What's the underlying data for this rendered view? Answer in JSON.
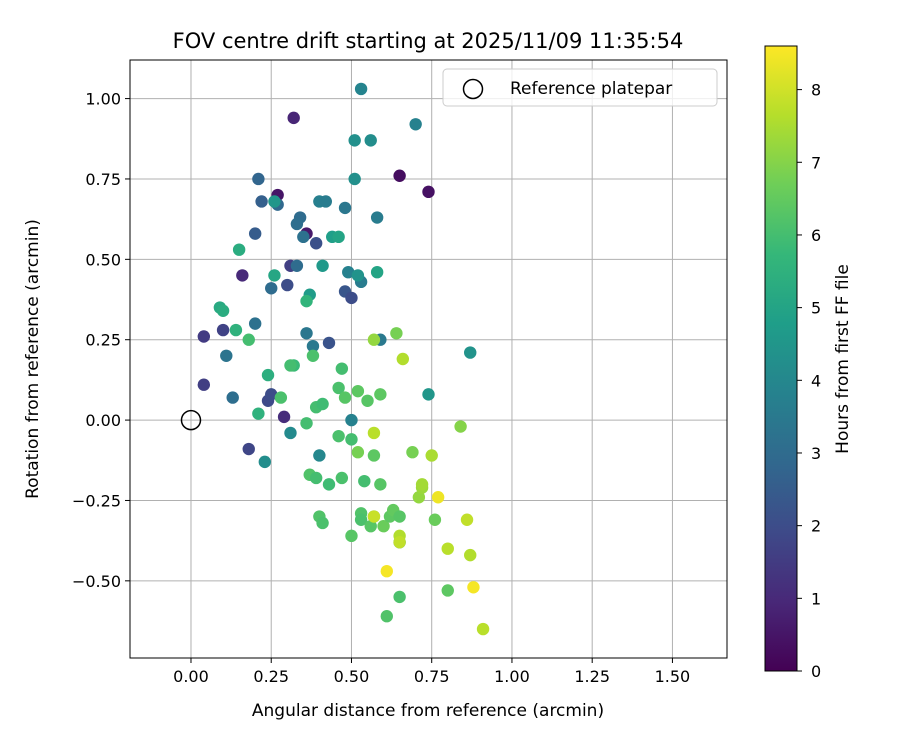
{
  "chart_data": {
    "type": "scatter",
    "title": "FOV centre drift starting at 2025/11/09 11:35:54",
    "xlabel": "Angular distance from reference (arcmin)",
    "ylabel": "Rotation from reference (arcmin)",
    "xlim": [
      -0.19,
      1.67
    ],
    "ylim": [
      -0.74,
      1.12
    ],
    "xticks": [
      0.0,
      0.25,
      0.5,
      0.75,
      1.0,
      1.25,
      1.5
    ],
    "xtick_labels": [
      "0.00",
      "0.25",
      "0.50",
      "0.75",
      "1.00",
      "1.25",
      "1.50"
    ],
    "yticks": [
      1.0,
      0.75,
      0.5,
      0.25,
      0.0,
      -0.25,
      -0.5
    ],
    "ytick_labels": [
      "1.00",
      "0.75",
      "0.50",
      "0.25",
      "0.00",
      "−0.25",
      "−0.50"
    ],
    "grid": true,
    "legend": {
      "position": "upper right",
      "entries": [
        "Reference platepar"
      ]
    },
    "reference_point": {
      "x": 0.0,
      "y": 0.0,
      "label": "Reference platepar"
    },
    "colorbar": {
      "label": "Hours from first FF file",
      "range": [
        0,
        8.6
      ],
      "ticks": [
        0,
        1,
        2,
        3,
        4,
        5,
        6,
        7,
        8
      ],
      "colormap": [
        "#440154",
        "#482878",
        "#3e4a89",
        "#31688e",
        "#26828e",
        "#1f9e89",
        "#35b779",
        "#6ece58",
        "#b5de2b",
        "#fde725"
      ]
    },
    "points": [
      {
        "x": 0.32,
        "y": 0.94,
        "h": 0.9
      },
      {
        "x": 0.27,
        "y": 0.7,
        "h": 0.5
      },
      {
        "x": 0.65,
        "y": 0.76,
        "h": 0.3
      },
      {
        "x": 0.74,
        "y": 0.71,
        "h": 0.4
      },
      {
        "x": 0.36,
        "y": 0.58,
        "h": 0.6
      },
      {
        "x": 0.16,
        "y": 0.45,
        "h": 1.0
      },
      {
        "x": 0.29,
        "y": 0.01,
        "h": 1.1
      },
      {
        "x": 0.04,
        "y": 0.26,
        "h": 1.5
      },
      {
        "x": 0.04,
        "y": 0.11,
        "h": 1.6
      },
      {
        "x": 0.1,
        "y": 0.28,
        "h": 1.7
      },
      {
        "x": 0.18,
        "y": -0.09,
        "h": 1.8
      },
      {
        "x": 0.24,
        "y": 0.06,
        "h": 1.9
      },
      {
        "x": 0.25,
        "y": 0.08,
        "h": 2.0
      },
      {
        "x": 0.31,
        "y": 0.48,
        "h": 1.6
      },
      {
        "x": 0.3,
        "y": 0.42,
        "h": 2.0
      },
      {
        "x": 0.39,
        "y": 0.55,
        "h": 2.1
      },
      {
        "x": 0.43,
        "y": 0.24,
        "h": 2.2
      },
      {
        "x": 0.48,
        "y": 0.4,
        "h": 2.3
      },
      {
        "x": 0.5,
        "y": 0.38,
        "h": 2.0
      },
      {
        "x": 0.2,
        "y": 0.58,
        "h": 2.5
      },
      {
        "x": 0.22,
        "y": 0.68,
        "h": 2.6
      },
      {
        "x": 0.21,
        "y": 0.75,
        "h": 2.8
      },
      {
        "x": 0.27,
        "y": 0.67,
        "h": 2.9
      },
      {
        "x": 0.34,
        "y": 0.63,
        "h": 3.0
      },
      {
        "x": 0.33,
        "y": 0.61,
        "h": 3.1
      },
      {
        "x": 0.35,
        "y": 0.57,
        "h": 3.2
      },
      {
        "x": 0.33,
        "y": 0.48,
        "h": 3.0
      },
      {
        "x": 0.11,
        "y": 0.2,
        "h": 3.3
      },
      {
        "x": 0.13,
        "y": 0.07,
        "h": 3.1
      },
      {
        "x": 0.2,
        "y": 0.3,
        "h": 3.2
      },
      {
        "x": 0.25,
        "y": 0.41,
        "h": 3.0
      },
      {
        "x": 0.36,
        "y": 0.27,
        "h": 3.4
      },
      {
        "x": 0.38,
        "y": 0.23,
        "h": 3.5
      },
      {
        "x": 0.48,
        "y": 0.66,
        "h": 3.4
      },
      {
        "x": 0.53,
        "y": 0.43,
        "h": 3.6
      },
      {
        "x": 0.49,
        "y": 0.46,
        "h": 3.8
      },
      {
        "x": 0.4,
        "y": 0.68,
        "h": 3.7
      },
      {
        "x": 0.42,
        "y": 0.68,
        "h": 3.6
      },
      {
        "x": 0.53,
        "y": 1.03,
        "h": 3.9
      },
      {
        "x": 0.7,
        "y": 0.92,
        "h": 3.8
      },
      {
        "x": 0.58,
        "y": 0.63,
        "h": 3.6
      },
      {
        "x": 0.59,
        "y": 0.25,
        "h": 3.5
      },
      {
        "x": 0.5,
        "y": 0.0,
        "h": 3.8
      },
      {
        "x": 0.4,
        "y": -0.11,
        "h": 4.0
      },
      {
        "x": 0.31,
        "y": -0.04,
        "h": 4.1
      },
      {
        "x": 0.23,
        "y": -0.13,
        "h": 4.2
      },
      {
        "x": 0.65,
        "y": -0.38,
        "h": 4.4
      },
      {
        "x": 0.74,
        "y": 0.08,
        "h": 4.5
      },
      {
        "x": 0.87,
        "y": 0.21,
        "h": 4.4
      },
      {
        "x": 0.51,
        "y": 0.87,
        "h": 4.3
      },
      {
        "x": 0.56,
        "y": 0.87,
        "h": 4.2
      },
      {
        "x": 0.51,
        "y": 0.75,
        "h": 4.3
      },
      {
        "x": 0.26,
        "y": 0.68,
        "h": 4.5
      },
      {
        "x": 0.41,
        "y": 0.48,
        "h": 4.6
      },
      {
        "x": 0.52,
        "y": 0.45,
        "h": 4.4
      },
      {
        "x": 0.37,
        "y": 0.39,
        "h": 4.7
      },
      {
        "x": 0.44,
        "y": 0.57,
        "h": 4.8
      },
      {
        "x": 0.46,
        "y": 0.57,
        "h": 5.0
      },
      {
        "x": 0.58,
        "y": 0.46,
        "h": 5.0
      },
      {
        "x": 0.26,
        "y": 0.45,
        "h": 5.1
      },
      {
        "x": 0.15,
        "y": 0.53,
        "h": 5.3
      },
      {
        "x": 0.09,
        "y": 0.35,
        "h": 5.2
      },
      {
        "x": 0.1,
        "y": 0.34,
        "h": 5.3
      },
      {
        "x": 0.14,
        "y": 0.28,
        "h": 5.5
      },
      {
        "x": 0.24,
        "y": 0.14,
        "h": 5.4
      },
      {
        "x": 0.21,
        "y": 0.02,
        "h": 5.5
      },
      {
        "x": 0.36,
        "y": 0.37,
        "h": 5.6
      },
      {
        "x": 0.32,
        "y": 0.17,
        "h": 5.8
      },
      {
        "x": 0.18,
        "y": 0.25,
        "h": 6.0
      },
      {
        "x": 0.28,
        "y": 0.07,
        "h": 6.1
      },
      {
        "x": 0.31,
        "y": 0.17,
        "h": 6.0
      },
      {
        "x": 0.38,
        "y": 0.2,
        "h": 6.1
      },
      {
        "x": 0.39,
        "y": 0.04,
        "h": 6.0
      },
      {
        "x": 0.41,
        "y": 0.05,
        "h": 5.9
      },
      {
        "x": 0.36,
        "y": -0.01,
        "h": 6.0
      },
      {
        "x": 0.37,
        "y": -0.17,
        "h": 6.2
      },
      {
        "x": 0.39,
        "y": -0.18,
        "h": 6.0
      },
      {
        "x": 0.43,
        "y": -0.2,
        "h": 5.9
      },
      {
        "x": 0.46,
        "y": 0.1,
        "h": 6.1
      },
      {
        "x": 0.47,
        "y": 0.16,
        "h": 6.0
      },
      {
        "x": 0.48,
        "y": 0.07,
        "h": 6.3
      },
      {
        "x": 0.52,
        "y": 0.09,
        "h": 6.4
      },
      {
        "x": 0.46,
        "y": -0.05,
        "h": 6.1
      },
      {
        "x": 0.5,
        "y": -0.06,
        "h": 6.0
      },
      {
        "x": 0.47,
        "y": -0.18,
        "h": 6.1
      },
      {
        "x": 0.52,
        "y": -0.1,
        "h": 6.8
      },
      {
        "x": 0.54,
        "y": -0.19,
        "h": 6.0
      },
      {
        "x": 0.55,
        "y": 0.06,
        "h": 6.3
      },
      {
        "x": 0.59,
        "y": 0.08,
        "h": 6.4
      },
      {
        "x": 0.57,
        "y": -0.11,
        "h": 6.4
      },
      {
        "x": 0.59,
        "y": -0.2,
        "h": 6.3
      },
      {
        "x": 0.4,
        "y": -0.3,
        "h": 6.2
      },
      {
        "x": 0.41,
        "y": -0.32,
        "h": 6.1
      },
      {
        "x": 0.5,
        "y": -0.36,
        "h": 6.3
      },
      {
        "x": 0.53,
        "y": -0.29,
        "h": 6.2
      },
      {
        "x": 0.53,
        "y": -0.31,
        "h": 6.1
      },
      {
        "x": 0.56,
        "y": -0.33,
        "h": 6.3
      },
      {
        "x": 0.57,
        "y": -0.3,
        "h": 6.5
      },
      {
        "x": 0.6,
        "y": -0.33,
        "h": 6.6
      },
      {
        "x": 0.62,
        "y": -0.3,
        "h": 6.4
      },
      {
        "x": 0.63,
        "y": -0.28,
        "h": 6.5
      },
      {
        "x": 0.65,
        "y": -0.3,
        "h": 6.3
      },
      {
        "x": 0.65,
        "y": -0.55,
        "h": 6.1
      },
      {
        "x": 0.61,
        "y": -0.61,
        "h": 6.2
      },
      {
        "x": 0.69,
        "y": -0.1,
        "h": 6.8
      },
      {
        "x": 0.76,
        "y": -0.31,
        "h": 6.6
      },
      {
        "x": 0.8,
        "y": -0.53,
        "h": 6.4
      },
      {
        "x": 0.84,
        "y": -0.02,
        "h": 7.0
      },
      {
        "x": 0.71,
        "y": -0.24,
        "h": 7.2
      },
      {
        "x": 0.72,
        "y": -0.21,
        "h": 7.3
      },
      {
        "x": 0.72,
        "y": -0.2,
        "h": 7.4
      },
      {
        "x": 0.75,
        "y": -0.11,
        "h": 7.5
      },
      {
        "x": 0.64,
        "y": 0.27,
        "h": 6.8
      },
      {
        "x": 0.57,
        "y": 0.25,
        "h": 7.2
      },
      {
        "x": 0.66,
        "y": 0.19,
        "h": 7.6
      },
      {
        "x": 0.57,
        "y": -0.04,
        "h": 7.7
      },
      {
        "x": 0.65,
        "y": -0.36,
        "h": 7.6
      },
      {
        "x": 0.65,
        "y": -0.38,
        "h": 7.8
      },
      {
        "x": 0.8,
        "y": -0.4,
        "h": 7.7
      },
      {
        "x": 0.87,
        "y": -0.42,
        "h": 7.6
      },
      {
        "x": 0.86,
        "y": -0.31,
        "h": 7.8
      },
      {
        "x": 0.91,
        "y": -0.65,
        "h": 7.7
      },
      {
        "x": 0.57,
        "y": -0.3,
        "h": 7.9
      },
      {
        "x": 0.61,
        "y": -0.47,
        "h": 8.5
      },
      {
        "x": 0.77,
        "y": -0.24,
        "h": 8.4
      },
      {
        "x": 0.88,
        "y": -0.52,
        "h": 8.5
      }
    ]
  }
}
